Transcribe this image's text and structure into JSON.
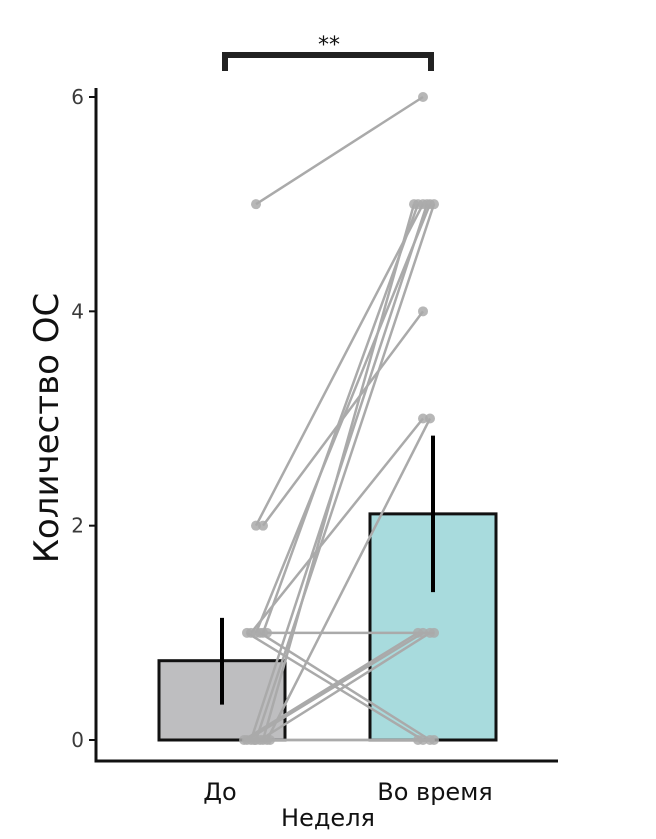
{
  "chart_data": {
    "type": "bar",
    "title": "",
    "xlabel": "Неделя",
    "ylabel": "Количество ОС",
    "ylim": [
      -0.2,
      6.1
    ],
    "yticks": [
      0,
      2,
      4,
      6
    ],
    "categories": [
      "До",
      "Во время"
    ],
    "values": [
      0.74,
      2.11
    ],
    "errors": [
      {
        "low": 0.33,
        "high": 1.14
      },
      {
        "low": 1.38,
        "high": 2.84
      }
    ],
    "bar_colors": [
      "#bebec0",
      "#a8dbdd"
    ],
    "point_color": "#aaaaaa",
    "line_color": "#aaaaaa",
    "significance": "**",
    "pairs": [
      [
        5,
        6
      ],
      [
        2,
        5
      ],
      [
        2,
        4
      ],
      [
        1,
        5
      ],
      [
        1,
        5
      ],
      [
        1,
        3
      ],
      [
        0,
        5
      ],
      [
        0,
        5
      ],
      [
        0,
        5
      ],
      [
        0,
        3
      ],
      [
        0,
        1
      ],
      [
        0,
        1
      ],
      [
        0,
        1
      ],
      [
        1,
        1
      ],
      [
        1,
        0
      ],
      [
        1,
        0
      ],
      [
        0,
        0
      ],
      [
        0,
        0
      ]
    ]
  }
}
